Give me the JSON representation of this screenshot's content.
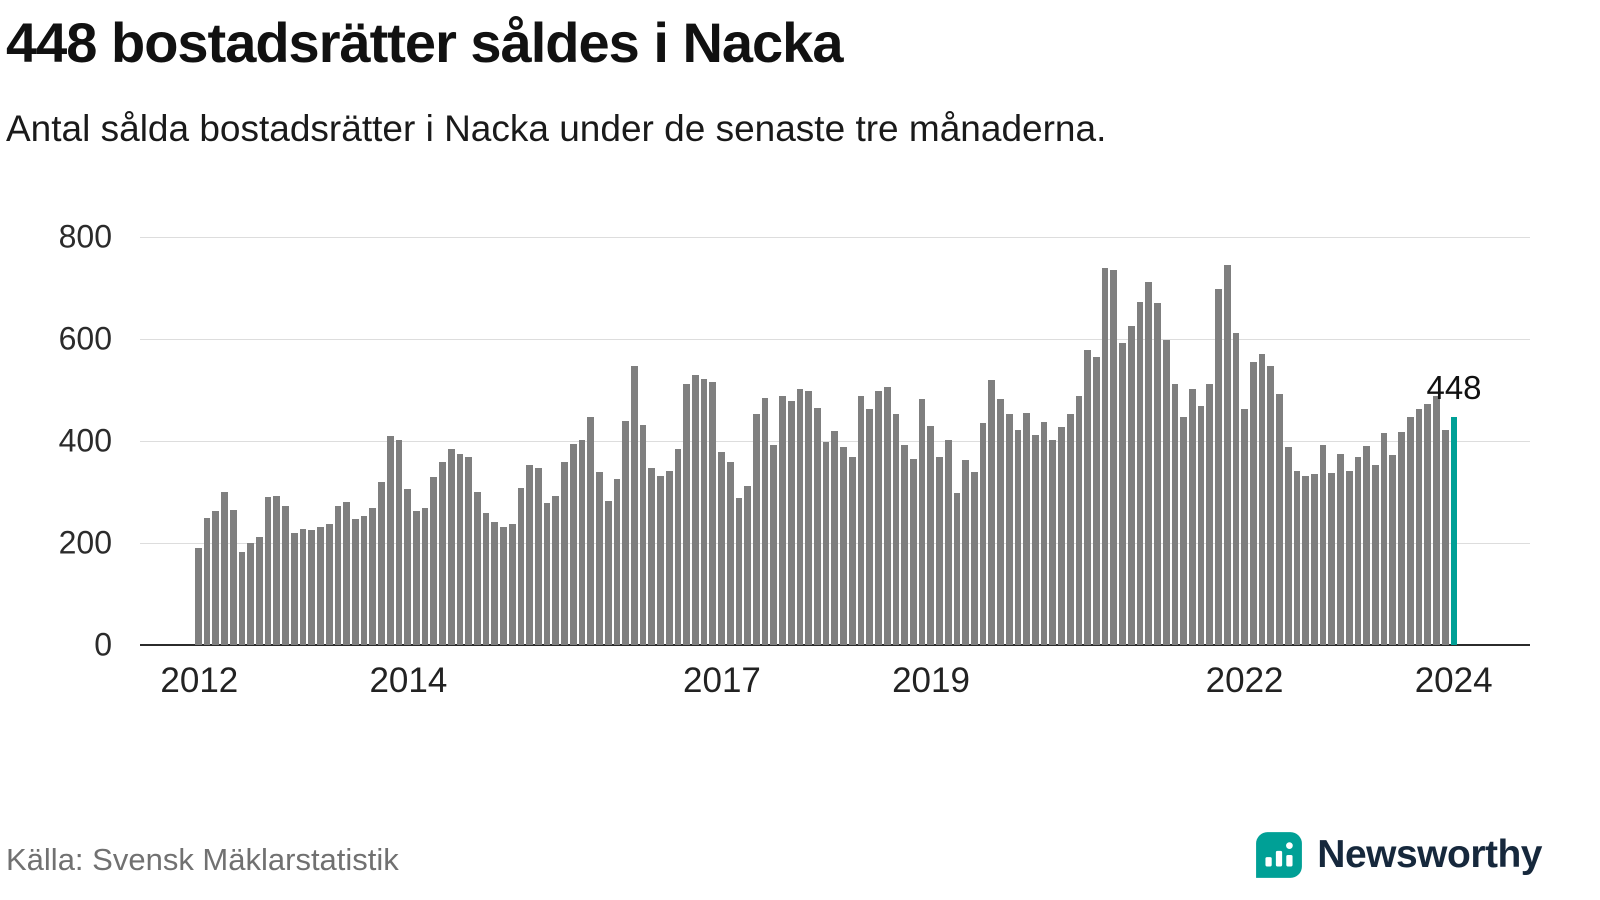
{
  "header": {
    "title": "448 bostadsrätter såldes i Nacka",
    "subtitle": "Antal sålda bostadsrätter i Nacka under de senaste tre månaderna."
  },
  "annotation": {
    "label": "448"
  },
  "footer": {
    "source": "Källa: Svensk Mäklarstatistik",
    "brand": "Newsworthy"
  },
  "colors": {
    "bar": "#7f7f7f",
    "highlight": "#00a096",
    "grid": "#dddddd",
    "baseline": "#2b2b2b",
    "brand_teal": "#00a096",
    "brand_navy": "#16283c"
  },
  "chart_data": {
    "type": "bar",
    "title": "448 bostadsrätter såldes i Nacka",
    "subtitle": "Antal sålda bostadsrätter i Nacka under de senaste tre månaderna.",
    "xlabel": "",
    "ylabel": "",
    "ylim": [
      0,
      800
    ],
    "yticks": [
      0,
      200,
      400,
      600,
      800
    ],
    "grid": "horizontal",
    "legend": "none",
    "x_start": "2012",
    "x_frequency": "monthly",
    "xticks": [
      {
        "label": "2012",
        "index": 0
      },
      {
        "label": "2014",
        "index": 24
      },
      {
        "label": "2017",
        "index": 60
      },
      {
        "label": "2019",
        "index": 84
      },
      {
        "label": "2022",
        "index": 120
      },
      {
        "label": "2024",
        "index": 144
      }
    ],
    "values": [
      190,
      250,
      262,
      300,
      265,
      182,
      200,
      212,
      290,
      292,
      272,
      220,
      228,
      225,
      232,
      238,
      272,
      280,
      248,
      252,
      268,
      320,
      410,
      402,
      305,
      262,
      268,
      330,
      358,
      385,
      375,
      368,
      300,
      258,
      242,
      232,
      238,
      308,
      352,
      348,
      278,
      292,
      358,
      395,
      402,
      448,
      340,
      282,
      325,
      440,
      548,
      432,
      348,
      332,
      342,
      385,
      512,
      530,
      522,
      515,
      378,
      358,
      288,
      312,
      452,
      485,
      392,
      488,
      478,
      502,
      498,
      465,
      398,
      420,
      388,
      368,
      488,
      462,
      498,
      505,
      452,
      392,
      365,
      482,
      430,
      368,
      402,
      298,
      362,
      340,
      435,
      520,
      482,
      452,
      422,
      455,
      412,
      438,
      402,
      428,
      452,
      488,
      578,
      565,
      740,
      735,
      592,
      625,
      672,
      712,
      670,
      598,
      512,
      448,
      502,
      468,
      512,
      698,
      745,
      612,
      462,
      555,
      570,
      548,
      492,
      388,
      342,
      332,
      335,
      392,
      338,
      375,
      342,
      368,
      390,
      352,
      415,
      372,
      418,
      448,
      462,
      472,
      488,
      422,
      448
    ],
    "highlight_last": true,
    "last_value": 448,
    "annotation_last": "448"
  }
}
